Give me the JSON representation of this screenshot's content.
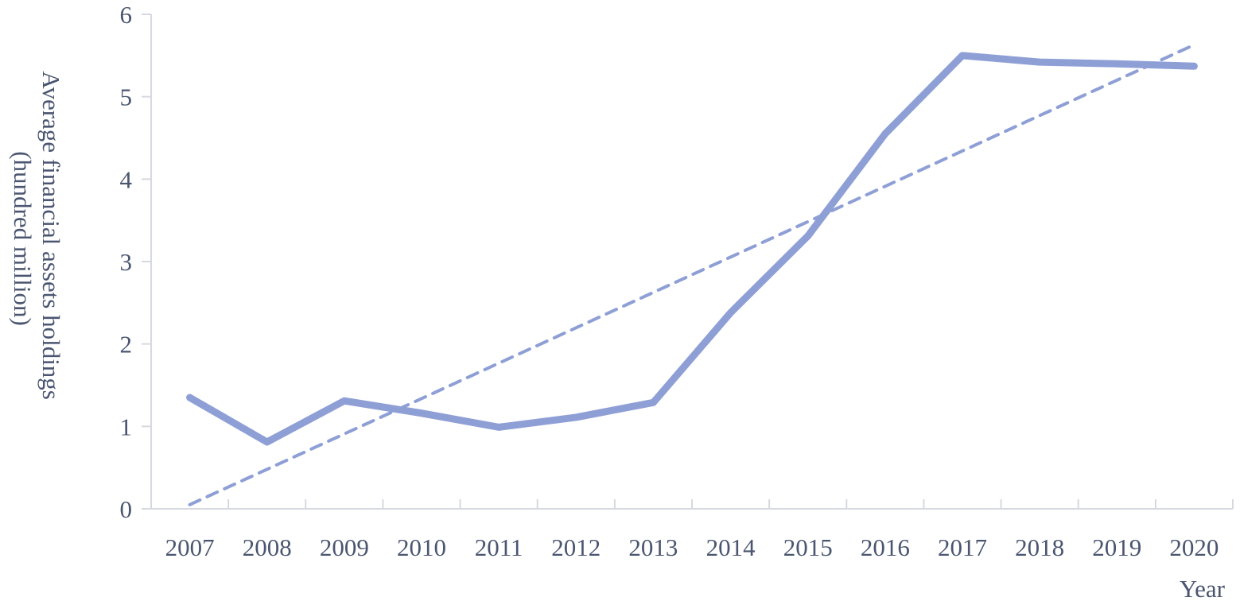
{
  "chart_data": {
    "type": "line",
    "title": "",
    "xlabel": "Year",
    "ylabel_lines": [
      "Average financial assets holdings",
      "(hundred million)"
    ],
    "categories": [
      "2007",
      "2008",
      "2009",
      "2010",
      "2011",
      "2012",
      "2013",
      "2014",
      "2015",
      "2016",
      "2017",
      "2018",
      "2019",
      "2020"
    ],
    "series": [
      {
        "values": [
          1.35,
          0.81,
          1.31,
          1.16,
          0.99,
          1.11,
          1.29,
          2.38,
          3.31,
          4.55,
          5.5,
          5.42,
          5.4,
          5.37
        ]
      }
    ],
    "trendline": {
      "style": "dashed",
      "start": 0.05,
      "end": 5.63
    },
    "ylim": [
      0,
      6
    ],
    "yticks": [
      "0",
      "1",
      "2",
      "3",
      "4",
      "5",
      "6"
    ],
    "grid": false,
    "legend": "none",
    "colors": {
      "series": "#8e9fd6",
      "axis": "#d6d9e0",
      "text": "#4a5570"
    }
  }
}
